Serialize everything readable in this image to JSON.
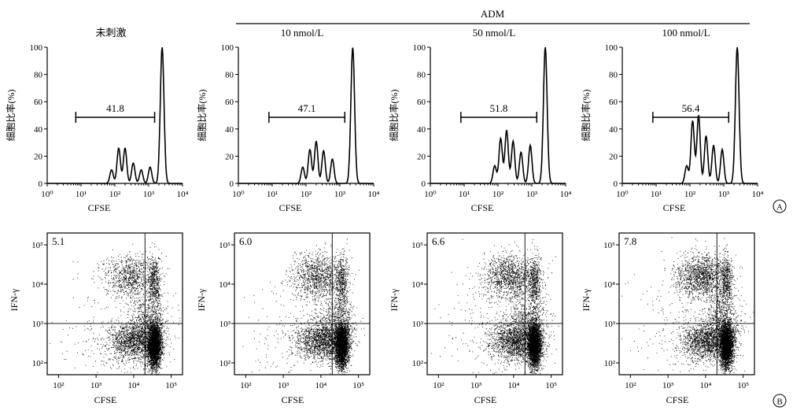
{
  "header": {
    "group_label": "ADM",
    "panel_a_marker": "A",
    "panel_b_marker": "B"
  },
  "chart_data": [
    {
      "type": "line",
      "panel": "A",
      "title": "未刺激",
      "xlabel": "CFSE",
      "ylabel": "细胞比率(%)",
      "x_scale": "log",
      "xlim": [
        1,
        10000
      ],
      "x_ticks": [
        "10⁰",
        "10¹",
        "10²",
        "10³",
        "10⁴"
      ],
      "ylim": [
        0,
        100
      ],
      "y_ticks": [
        "0",
        "20",
        "40",
        "60",
        "80",
        "100"
      ],
      "gate_value": "41.8",
      "gate_range": [
        7,
        1500
      ],
      "peaks": [
        [
          80,
          10
        ],
        [
          130,
          26
        ],
        [
          200,
          26
        ],
        [
          350,
          15
        ],
        [
          600,
          10
        ],
        [
          1100,
          12
        ],
        [
          2500,
          100
        ]
      ]
    },
    {
      "type": "line",
      "panel": "A",
      "title": "10 nmol/L",
      "xlabel": "CFSE",
      "ylabel": "细胞比率(%)",
      "x_scale": "log",
      "xlim": [
        1,
        10000
      ],
      "x_ticks": [
        "10⁰",
        "10¹",
        "10²",
        "10³",
        "10⁴"
      ],
      "ylim": [
        0,
        100
      ],
      "y_ticks": [
        "0",
        "20",
        "40",
        "60",
        "80",
        "100"
      ],
      "gate_value": "47.1",
      "gate_range": [
        8,
        1400
      ],
      "peaks": [
        [
          80,
          12
        ],
        [
          130,
          25
        ],
        [
          200,
          31
        ],
        [
          330,
          24
        ],
        [
          600,
          18
        ],
        [
          2400,
          100
        ]
      ]
    },
    {
      "type": "line",
      "panel": "A",
      "title": "50 nmol/L",
      "xlabel": "CFSE",
      "ylabel": "细胞比率(%)",
      "x_scale": "log",
      "xlim": [
        1,
        10000
      ],
      "x_ticks": [
        "10⁰",
        "10¹",
        "10²",
        "10³",
        "10⁴"
      ],
      "ylim": [
        0,
        100
      ],
      "y_ticks": [
        "0",
        "20",
        "40",
        "60",
        "80",
        "100"
      ],
      "gate_value": "51.8",
      "gate_range": [
        8,
        1400
      ],
      "peaks": [
        [
          80,
          13
        ],
        [
          120,
          33
        ],
        [
          180,
          39
        ],
        [
          280,
          31
        ],
        [
          480,
          23
        ],
        [
          900,
          28
        ],
        [
          2500,
          100
        ]
      ]
    },
    {
      "type": "line",
      "panel": "A",
      "title": "100 nmol/L",
      "xlabel": "CFSE",
      "ylabel": "细胞比率(%)",
      "x_scale": "log",
      "xlim": [
        1,
        10000
      ],
      "x_ticks": [
        "10⁰",
        "10¹",
        "10²",
        "10³",
        "10⁴"
      ],
      "ylim": [
        0,
        100
      ],
      "y_ticks": [
        "0",
        "20",
        "40",
        "60",
        "80",
        "100"
      ],
      "gate_value": "56.4",
      "gate_range": [
        8,
        1400
      ],
      "peaks": [
        [
          80,
          13
        ],
        [
          120,
          46
        ],
        [
          180,
          50
        ],
        [
          300,
          35
        ],
        [
          500,
          28
        ],
        [
          900,
          25
        ],
        [
          2500,
          100
        ]
      ]
    },
    {
      "type": "scatter",
      "panel": "B",
      "xlabel": "CFSE",
      "ylabel": "IFN-γ",
      "x_scale": "log",
      "y_scale": "log",
      "xlim": [
        50,
        200000
      ],
      "ylim": [
        50,
        200000
      ],
      "x_ticks": [
        "10²",
        "10³",
        "10⁴",
        "10⁵"
      ],
      "y_ticks": [
        "10²",
        "10³",
        "10⁴",
        "10⁵"
      ],
      "quadrant_value": "5.1",
      "quadrant_divider": {
        "x": 20000,
        "y": 1000
      }
    },
    {
      "type": "scatter",
      "panel": "B",
      "xlabel": "CFSE",
      "ylabel": "IFN-γ",
      "x_scale": "log",
      "y_scale": "log",
      "xlim": [
        50,
        200000
      ],
      "ylim": [
        50,
        200000
      ],
      "x_ticks": [
        "10²",
        "10³",
        "10⁴",
        "10⁵"
      ],
      "y_ticks": [
        "10²",
        "10³",
        "10⁴",
        "10⁵"
      ],
      "quadrant_value": "6.0",
      "quadrant_divider": {
        "x": 20000,
        "y": 1000
      }
    },
    {
      "type": "scatter",
      "panel": "B",
      "xlabel": "CFSE",
      "ylabel": "IFN-γ",
      "x_scale": "log",
      "y_scale": "log",
      "xlim": [
        50,
        200000
      ],
      "ylim": [
        50,
        200000
      ],
      "x_ticks": [
        "10²",
        "10³",
        "10⁴",
        "10⁵"
      ],
      "y_ticks": [
        "10²",
        "10³",
        "10⁴",
        "10⁵"
      ],
      "quadrant_value": "6.6",
      "quadrant_divider": {
        "x": 20000,
        "y": 1000
      }
    },
    {
      "type": "scatter",
      "panel": "B",
      "xlabel": "CFSE",
      "ylabel": "IFN-γ",
      "x_scale": "log",
      "y_scale": "log",
      "xlim": [
        50,
        200000
      ],
      "ylim": [
        50,
        200000
      ],
      "x_ticks": [
        "10²",
        "10³",
        "10⁴",
        "10⁵"
      ],
      "y_ticks": [
        "10²",
        "10³",
        "10⁴",
        "10⁵"
      ],
      "quadrant_value": "7.8",
      "quadrant_divider": {
        "x": 20000,
        "y": 1000
      }
    }
  ]
}
